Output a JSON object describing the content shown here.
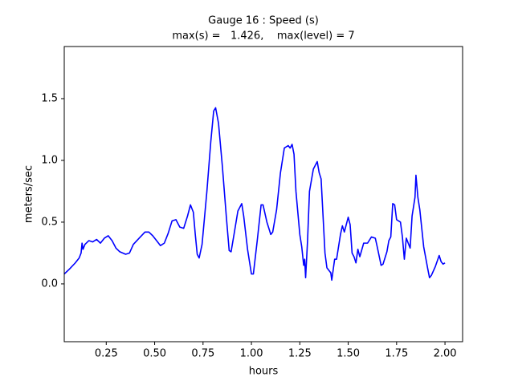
{
  "chart_data": {
    "type": "line",
    "title": "Gauge 16 : Speed (s)",
    "subtitle": "max(s) =   1.426,    max(level) = 7",
    "x_label": "hours",
    "y_label": "meters/sec",
    "xlim": [
      0.033,
      2.091
    ],
    "ylim": [
      -0.468,
      1.922
    ],
    "xticks": [
      0.25,
      {
        "value": 0.5,
        "label": "0.50"
      },
      0.75,
      {
        "value": 1.0,
        "label": "1.00"
      },
      1.25,
      {
        "value": 1.5,
        "label": "1.50"
      },
      1.75,
      {
        "value": 2.0,
        "label": "2.00"
      }
    ],
    "yticks": [
      {
        "value": 0,
        "label": "0.0"
      },
      0.5,
      {
        "value": 1.0,
        "label": "1.0"
      },
      1.5
    ],
    "grid": false,
    "x": [
      0.033,
      0.06,
      0.09,
      0.11,
      0.12,
      0.125,
      0.13,
      0.14,
      0.16,
      0.18,
      0.2,
      0.22,
      0.24,
      0.26,
      0.28,
      0.3,
      0.32,
      0.35,
      0.37,
      0.39,
      0.42,
      0.45,
      0.47,
      0.49,
      0.51,
      0.53,
      0.55,
      0.57,
      0.59,
      0.61,
      0.63,
      0.65,
      0.67,
      0.685,
      0.7,
      0.71,
      0.72,
      0.73,
      0.745,
      0.77,
      0.79,
      0.805,
      0.815,
      0.83,
      0.85,
      0.87,
      0.885,
      0.895,
      0.91,
      0.93,
      0.95,
      0.96,
      0.98,
      1.0,
      1.01,
      1.03,
      1.05,
      1.06,
      1.08,
      1.09,
      1.1,
      1.11,
      1.13,
      1.15,
      1.17,
      1.19,
      1.2,
      1.21,
      1.22,
      1.23,
      1.25,
      1.26,
      1.27,
      1.275,
      1.28,
      1.29,
      1.3,
      1.32,
      1.34,
      1.35,
      1.36,
      1.37,
      1.38,
      1.39,
      1.41,
      1.415,
      1.43,
      1.44,
      1.46,
      1.47,
      1.48,
      1.5,
      1.51,
      1.52,
      1.53,
      1.54,
      1.55,
      1.56,
      1.58,
      1.6,
      1.62,
      1.64,
      1.65,
      1.67,
      1.68,
      1.7,
      1.71,
      1.72,
      1.73,
      1.74,
      1.75,
      1.77,
      1.78,
      1.79,
      1.8,
      1.81,
      1.82,
      1.83,
      1.845,
      1.85,
      1.86,
      1.87,
      1.88,
      1.89,
      1.91,
      1.92,
      1.93,
      1.95,
      1.97,
      1.98,
      1.99,
      2.0
    ],
    "series": [
      {
        "color": "#0000ff",
        "values": [
          0.08,
          0.12,
          0.17,
          0.21,
          0.25,
          0.33,
          0.28,
          0.32,
          0.35,
          0.34,
          0.36,
          0.33,
          0.37,
          0.39,
          0.35,
          0.29,
          0.26,
          0.24,
          0.25,
          0.32,
          0.37,
          0.42,
          0.42,
          0.39,
          0.35,
          0.31,
          0.33,
          0.41,
          0.51,
          0.52,
          0.46,
          0.45,
          0.55,
          0.64,
          0.58,
          0.4,
          0.24,
          0.21,
          0.32,
          0.75,
          1.15,
          1.4,
          1.426,
          1.3,
          0.95,
          0.55,
          0.27,
          0.26,
          0.4,
          0.59,
          0.65,
          0.55,
          0.28,
          0.08,
          0.08,
          0.35,
          0.64,
          0.64,
          0.5,
          0.45,
          0.4,
          0.42,
          0.6,
          0.9,
          1.1,
          1.12,
          1.1,
          1.13,
          1.05,
          0.75,
          0.4,
          0.3,
          0.15,
          0.2,
          0.05,
          0.35,
          0.75,
          0.93,
          0.99,
          0.9,
          0.85,
          0.55,
          0.25,
          0.13,
          0.09,
          0.03,
          0.2,
          0.2,
          0.4,
          0.47,
          0.42,
          0.54,
          0.48,
          0.25,
          0.22,
          0.17,
          0.28,
          0.22,
          0.33,
          0.33,
          0.38,
          0.37,
          0.3,
          0.15,
          0.16,
          0.26,
          0.35,
          0.38,
          0.65,
          0.64,
          0.52,
          0.5,
          0.38,
          0.2,
          0.37,
          0.33,
          0.29,
          0.55,
          0.7,
          0.88,
          0.7,
          0.6,
          0.45,
          0.3,
          0.13,
          0.05,
          0.07,
          0.14,
          0.23,
          0.18,
          0.16,
          0.17
        ]
      }
    ]
  }
}
